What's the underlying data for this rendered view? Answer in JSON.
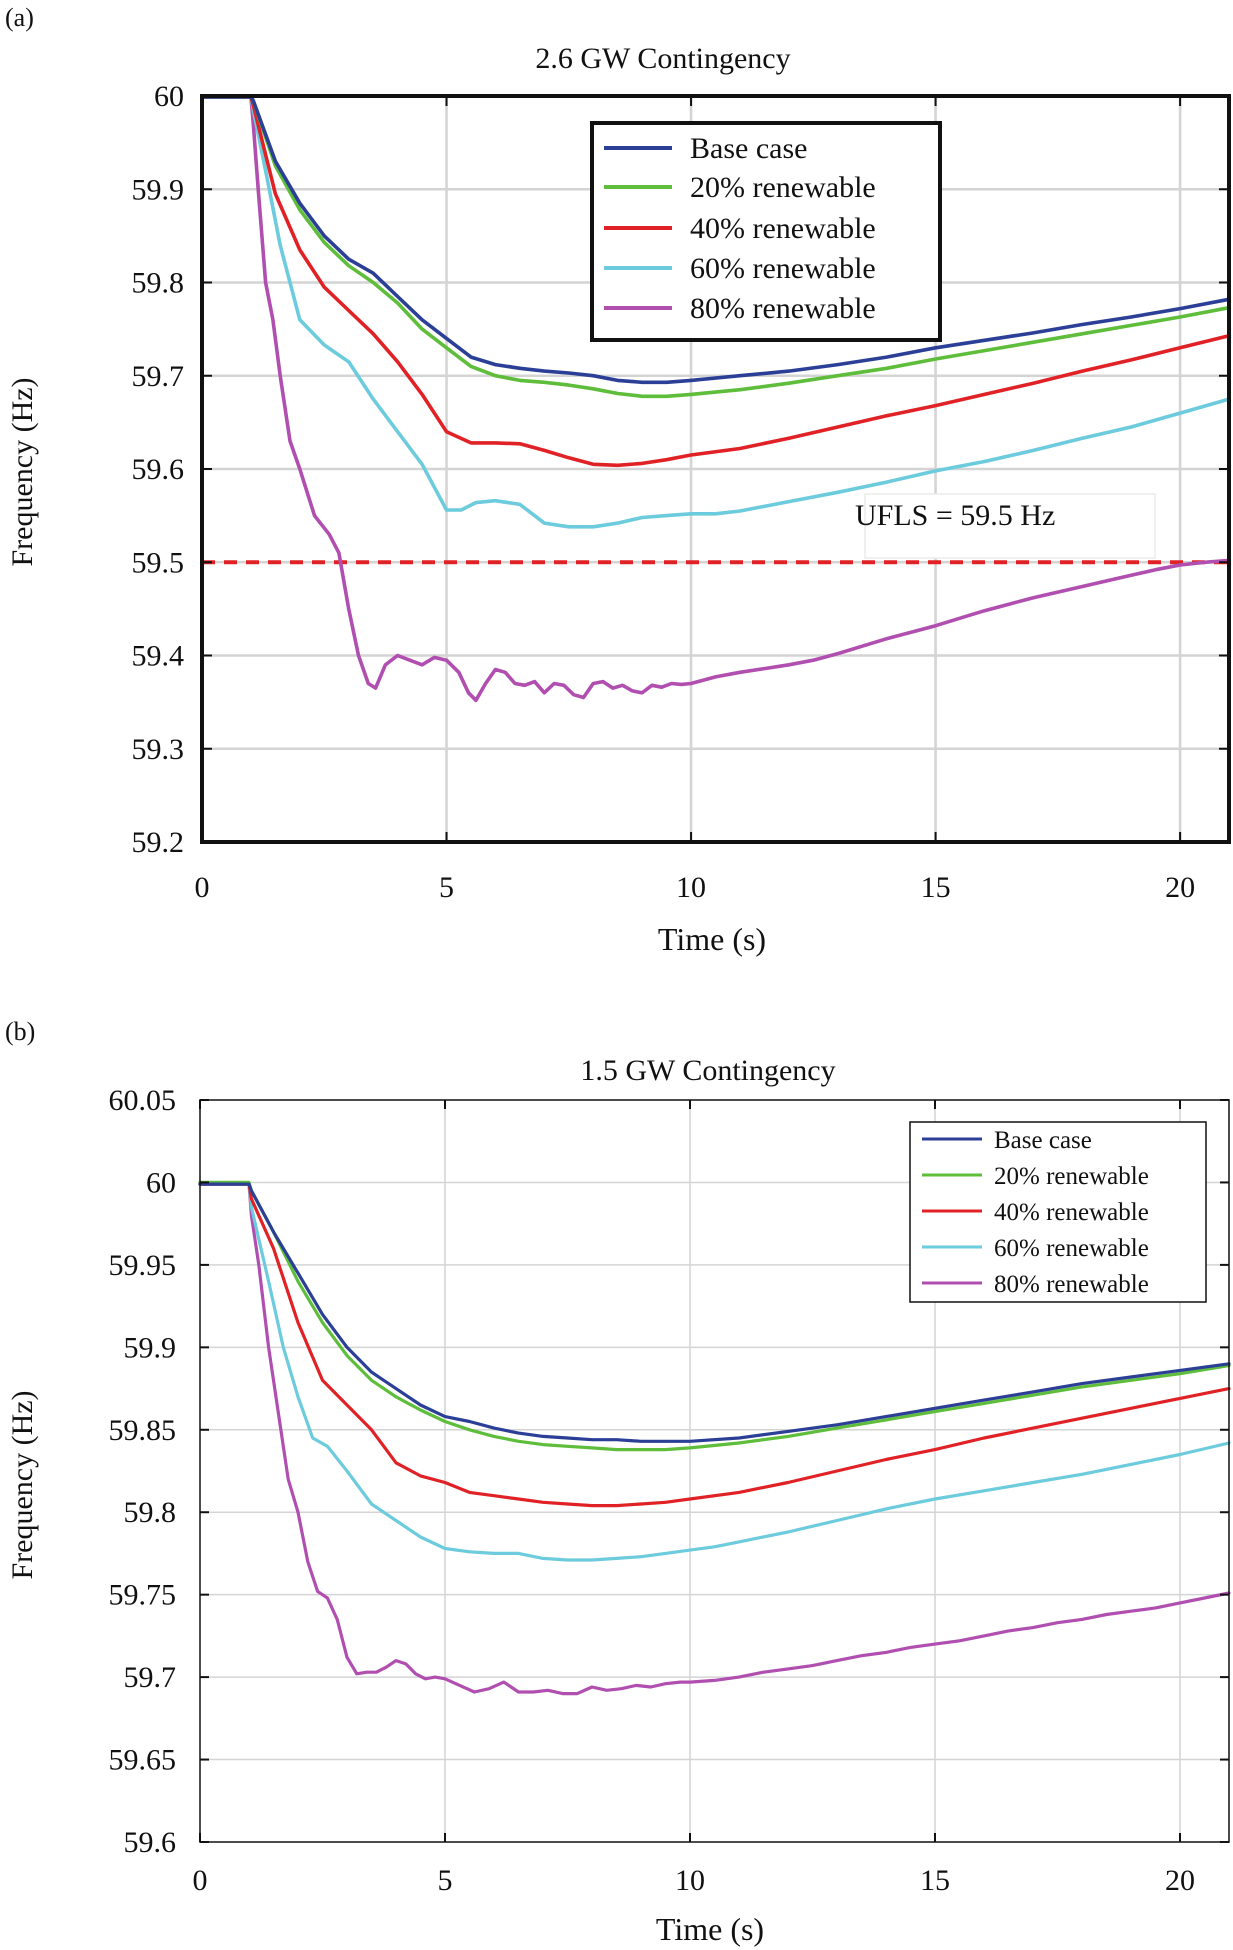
{
  "colors": {
    "base": "#2b3f96",
    "r20": "#5ebd3a",
    "r40": "#e02226",
    "r60": "#6ccbdc",
    "r80": "#b04fb0",
    "ufls": "#e02226",
    "grid": "#d4d4d4",
    "axis": "#111111"
  },
  "chart_data": [
    {
      "panel_label": "(a)",
      "type": "line",
      "title": "2.6 GW Contingency",
      "xlabel": "Time (s)",
      "ylabel": "Frequency (Hz)",
      "xlim": [
        0,
        21
      ],
      "ylim": [
        59.2,
        60.0
      ],
      "xticks": [
        0,
        5,
        10,
        15,
        20
      ],
      "xtick_labels": [
        "0",
        "5",
        "10",
        "15",
        "20"
      ],
      "yticks": [
        59.2,
        59.3,
        59.4,
        59.5,
        59.6,
        59.7,
        59.8,
        59.9,
        60.0
      ],
      "ytick_labels": [
        "59.2",
        "59.3",
        "59.4",
        "59.5",
        "59.6",
        "59.7",
        "59.8",
        "59.9",
        "60"
      ],
      "grid": true,
      "legend_position": "top-right",
      "annotation": {
        "text": "UFLS = 59.5 Hz",
        "x": 13.2,
        "y": 59.53
      },
      "threshold": {
        "value": 59.5,
        "style": "dashed"
      },
      "series": [
        {
          "name": "Base case",
          "color_key": "base",
          "x": [
            0,
            1,
            1.05,
            1.5,
            2,
            2.5,
            3,
            3.5,
            4,
            4.5,
            5,
            5.5,
            6,
            6.5,
            7,
            7.5,
            8,
            8.5,
            9,
            9.5,
            10,
            11,
            12,
            13,
            14,
            15,
            16,
            17,
            18,
            19,
            20,
            21
          ],
          "y": [
            59.999,
            59.999,
            59.995,
            59.93,
            59.885,
            59.85,
            59.825,
            59.81,
            59.785,
            59.76,
            59.74,
            59.72,
            59.712,
            59.708,
            59.705,
            59.703,
            59.7,
            59.695,
            59.693,
            59.693,
            59.695,
            59.7,
            59.705,
            59.712,
            59.72,
            59.73,
            59.738,
            59.746,
            59.755,
            59.763,
            59.772,
            59.782
          ]
        },
        {
          "name": "20% renewable",
          "color_key": "r20",
          "x": [
            0,
            1,
            1.05,
            1.5,
            2,
            2.5,
            3,
            3.5,
            4,
            4.5,
            5,
            5.5,
            6,
            6.5,
            7,
            7.5,
            8,
            8.5,
            9,
            9.5,
            10,
            11,
            12,
            13,
            14,
            15,
            16,
            17,
            18,
            19,
            20,
            21
          ],
          "y": [
            59.999,
            59.999,
            59.995,
            59.925,
            59.878,
            59.843,
            59.818,
            59.8,
            59.778,
            59.75,
            59.73,
            59.71,
            59.7,
            59.695,
            59.693,
            59.69,
            59.686,
            59.681,
            59.678,
            59.678,
            59.68,
            59.685,
            59.692,
            59.7,
            59.708,
            59.718,
            59.727,
            59.736,
            59.745,
            59.754,
            59.763,
            59.773
          ]
        },
        {
          "name": "40% renewable",
          "color_key": "r40",
          "x": [
            0,
            1,
            1.05,
            1.5,
            2,
            2.5,
            3,
            3.5,
            4,
            4.5,
            5,
            5.5,
            6,
            6.5,
            7,
            7.5,
            8,
            8.5,
            9,
            9.5,
            10,
            11,
            12,
            13,
            14,
            15,
            16,
            17,
            18,
            19,
            20,
            21
          ],
          "y": [
            59.999,
            59.999,
            59.99,
            59.895,
            59.835,
            59.795,
            59.77,
            59.745,
            59.715,
            59.68,
            59.64,
            59.628,
            59.628,
            59.627,
            59.62,
            59.612,
            59.605,
            59.604,
            59.606,
            59.61,
            59.615,
            59.622,
            59.633,
            59.645,
            59.657,
            59.668,
            59.68,
            59.692,
            59.705,
            59.717,
            59.73,
            59.743
          ]
        },
        {
          "name": "60% renewable",
          "color_key": "r60",
          "x": [
            0,
            1,
            1.05,
            1.3,
            1.6,
            2,
            2.5,
            3,
            3.5,
            4,
            4.5,
            5,
            5.3,
            5.6,
            6,
            6.5,
            7,
            7.5,
            8,
            8.5,
            9,
            9.5,
            10,
            10.5,
            11,
            12,
            13,
            14,
            15,
            16,
            17,
            18,
            19,
            20,
            21
          ],
          "y": [
            59.999,
            59.999,
            59.985,
            59.92,
            59.84,
            59.76,
            59.733,
            59.715,
            59.675,
            59.64,
            59.605,
            59.556,
            59.556,
            59.564,
            59.566,
            59.562,
            59.542,
            59.538,
            59.538,
            59.542,
            59.548,
            59.55,
            59.552,
            59.552,
            59.555,
            59.565,
            59.575,
            59.586,
            59.598,
            59.608,
            59.62,
            59.633,
            59.645,
            59.66,
            59.675
          ]
        },
        {
          "name": "80% renewable",
          "color_key": "r80",
          "x": [
            0,
            1,
            1.05,
            1.15,
            1.3,
            1.45,
            1.6,
            1.8,
            2,
            2.3,
            2.6,
            2.8,
            3,
            3.2,
            3.4,
            3.55,
            3.75,
            4,
            4.25,
            4.5,
            4.75,
            5,
            5.25,
            5.45,
            5.6,
            5.8,
            6,
            6.2,
            6.4,
            6.6,
            6.8,
            7,
            7.2,
            7.4,
            7.6,
            7.8,
            8,
            8.2,
            8.4,
            8.6,
            8.8,
            9,
            9.2,
            9.4,
            9.6,
            9.8,
            10,
            10.5,
            11,
            11.5,
            12,
            12.5,
            13,
            13.5,
            14,
            14.5,
            15,
            15.5,
            16,
            16.5,
            17,
            17.5,
            18,
            18.5,
            19,
            19.5,
            20,
            20.5,
            21
          ],
          "y": [
            59.999,
            59.999,
            59.97,
            59.9,
            59.8,
            59.76,
            59.7,
            59.63,
            59.6,
            59.55,
            59.53,
            59.51,
            59.45,
            59.4,
            59.37,
            59.365,
            59.39,
            59.4,
            59.395,
            59.39,
            59.398,
            59.395,
            59.382,
            59.36,
            59.352,
            59.37,
            59.385,
            59.382,
            59.37,
            59.368,
            59.372,
            59.36,
            59.37,
            59.368,
            59.358,
            59.355,
            59.37,
            59.372,
            59.365,
            59.368,
            59.362,
            59.36,
            59.368,
            59.366,
            59.37,
            59.369,
            59.37,
            59.377,
            59.382,
            59.386,
            59.39,
            59.395,
            59.402,
            59.41,
            59.418,
            59.425,
            59.432,
            59.44,
            59.448,
            59.455,
            59.462,
            59.468,
            59.474,
            59.48,
            59.486,
            59.492,
            59.497,
            59.5,
            59.502
          ]
        }
      ]
    },
    {
      "panel_label": "(b)",
      "type": "line",
      "title": "1.5 GW Contingency",
      "xlabel": "Time (s)",
      "ylabel": "Frequency (Hz)",
      "xlim": [
        0,
        21
      ],
      "ylim": [
        59.6,
        60.05
      ],
      "xticks": [
        0,
        5,
        10,
        15,
        20
      ],
      "xtick_labels": [
        "0",
        "5",
        "10",
        "15",
        "20"
      ],
      "yticks": [
        59.6,
        59.65,
        59.7,
        59.75,
        59.8,
        59.85,
        59.9,
        59.95,
        60.0,
        60.05
      ],
      "ytick_labels": [
        "59.6",
        "59.65",
        "59.7",
        "59.75",
        "59.8",
        "59.85",
        "59.9",
        "59.95",
        "60",
        "60.05"
      ],
      "grid": true,
      "legend_position": "top-right",
      "series": [
        {
          "name": "Base case",
          "color_key": "base",
          "x": [
            0,
            1,
            1.05,
            1.5,
            2,
            2.5,
            3,
            3.5,
            4,
            4.5,
            5,
            5.5,
            6,
            6.5,
            7,
            7.5,
            8,
            8.5,
            9,
            9.5,
            10,
            11,
            12,
            13,
            14,
            15,
            16,
            17,
            18,
            19,
            20,
            21
          ],
          "y": [
            59.999,
            59.999,
            59.995,
            59.97,
            59.945,
            59.92,
            59.9,
            59.885,
            59.875,
            59.865,
            59.858,
            59.855,
            59.851,
            59.848,
            59.846,
            59.845,
            59.844,
            59.844,
            59.843,
            59.843,
            59.843,
            59.845,
            59.849,
            59.853,
            59.858,
            59.863,
            59.868,
            59.873,
            59.878,
            59.882,
            59.886,
            59.89
          ]
        },
        {
          "name": "20% renewable",
          "color_key": "r20",
          "x": [
            0,
            1,
            1.05,
            1.5,
            2,
            2.5,
            3,
            3.5,
            4,
            4.5,
            5,
            5.5,
            6,
            6.5,
            7,
            7.5,
            8,
            8.5,
            9,
            9.5,
            10,
            11,
            12,
            13,
            14,
            15,
            16,
            17,
            18,
            19,
            20,
            21
          ],
          "y": [
            60.0,
            60.0,
            59.995,
            59.97,
            59.94,
            59.915,
            59.895,
            59.88,
            59.87,
            59.862,
            59.855,
            59.85,
            59.846,
            59.843,
            59.841,
            59.84,
            59.839,
            59.838,
            59.838,
            59.838,
            59.839,
            59.842,
            59.846,
            59.851,
            59.856,
            59.861,
            59.866,
            59.871,
            59.876,
            59.88,
            59.884,
            59.889
          ]
        },
        {
          "name": "40% renewable",
          "color_key": "r40",
          "x": [
            0,
            1,
            1.05,
            1.5,
            2,
            2.5,
            3,
            3.5,
            4,
            4.5,
            5,
            5.5,
            6,
            6.5,
            7,
            7.5,
            8,
            8.5,
            9,
            9.5,
            10,
            11,
            12,
            13,
            14,
            15,
            16,
            17,
            18,
            19,
            20,
            21
          ],
          "y": [
            59.999,
            59.999,
            59.99,
            59.96,
            59.915,
            59.88,
            59.865,
            59.85,
            59.83,
            59.822,
            59.818,
            59.812,
            59.81,
            59.808,
            59.806,
            59.805,
            59.804,
            59.804,
            59.805,
            59.806,
            59.808,
            59.812,
            59.818,
            59.825,
            59.832,
            59.838,
            59.845,
            59.851,
            59.857,
            59.863,
            59.869,
            59.875
          ]
        },
        {
          "name": "60% renewable",
          "color_key": "r60",
          "x": [
            0,
            1,
            1.05,
            1.4,
            1.7,
            2,
            2.3,
            2.6,
            3,
            3.5,
            4,
            4.5,
            5,
            5.5,
            6,
            6.5,
            7,
            7.5,
            8,
            8.5,
            9,
            9.5,
            10,
            10.5,
            11,
            12,
            13,
            14,
            15,
            16,
            17,
            18,
            19,
            20,
            21
          ],
          "y": [
            59.999,
            59.999,
            59.985,
            59.94,
            59.9,
            59.87,
            59.845,
            59.84,
            59.825,
            59.805,
            59.795,
            59.785,
            59.778,
            59.776,
            59.775,
            59.775,
            59.772,
            59.771,
            59.771,
            59.772,
            59.773,
            59.775,
            59.777,
            59.779,
            59.782,
            59.788,
            59.795,
            59.802,
            59.808,
            59.813,
            59.818,
            59.823,
            59.829,
            59.835,
            59.842
          ]
        },
        {
          "name": "80% renewable",
          "color_key": "r80",
          "x": [
            0,
            1,
            1.05,
            1.2,
            1.4,
            1.6,
            1.8,
            2,
            2.2,
            2.4,
            2.6,
            2.8,
            3,
            3.2,
            3.4,
            3.6,
            3.8,
            4,
            4.2,
            4.4,
            4.6,
            4.8,
            5,
            5.3,
            5.6,
            5.9,
            6.2,
            6.5,
            6.8,
            7.1,
            7.4,
            7.7,
            8,
            8.3,
            8.6,
            8.9,
            9.2,
            9.5,
            9.8,
            10,
            10.5,
            11,
            11.5,
            12,
            12.5,
            13,
            13.5,
            14,
            14.5,
            15,
            15.5,
            16,
            16.5,
            17,
            17.5,
            18,
            18.5,
            19,
            19.5,
            20,
            20.5,
            21
          ],
          "y": [
            59.999,
            59.999,
            59.98,
            59.95,
            59.9,
            59.86,
            59.82,
            59.8,
            59.77,
            59.752,
            59.748,
            59.735,
            59.712,
            59.702,
            59.703,
            59.703,
            59.706,
            59.71,
            59.708,
            59.702,
            59.699,
            59.7,
            59.699,
            59.695,
            59.691,
            59.693,
            59.697,
            59.691,
            59.691,
            59.692,
            59.69,
            59.69,
            59.694,
            59.692,
            59.693,
            59.695,
            59.694,
            59.696,
            59.697,
            59.697,
            59.698,
            59.7,
            59.703,
            59.705,
            59.707,
            59.71,
            59.713,
            59.715,
            59.718,
            59.72,
            59.722,
            59.725,
            59.728,
            59.73,
            59.733,
            59.735,
            59.738,
            59.74,
            59.742,
            59.745,
            59.748,
            59.751
          ]
        }
      ]
    }
  ]
}
